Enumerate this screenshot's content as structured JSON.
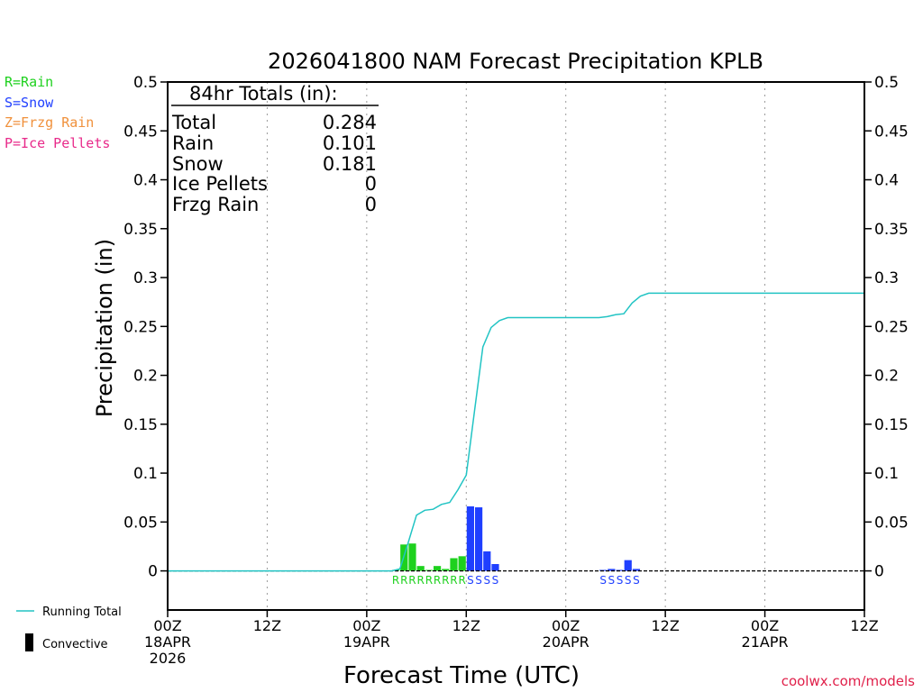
{
  "colors": {
    "rain": "#1ed11e",
    "snow": "#1f3fff",
    "frzg_rain": "#f0913c",
    "ice_pellets": "#e82a8a",
    "running_total": "#22c4c4",
    "convective": "#000000",
    "credit": "#e0204a"
  },
  "legend_left": {
    "rain": "R=Rain",
    "snow": "S=Snow",
    "frzg_rain": "Z=Frzg Rain",
    "ice_pellets": "P=Ice Pellets"
  },
  "legend_bottom": {
    "running_total": "Running Total",
    "convective": "Convective"
  },
  "totals_box": {
    "header": "84hr Totals (in):",
    "rows": [
      {
        "label": "Total",
        "value": "0.284"
      },
      {
        "label": "Rain",
        "value": "0.101"
      },
      {
        "label": "Snow",
        "value": "0.181"
      },
      {
        "label": "Ice Pellets",
        "value": "0"
      },
      {
        "label": "Frzg Rain",
        "value": "0"
      }
    ]
  },
  "credit": "coolwx.com/models",
  "chart_data": {
    "type": "bar",
    "title": "2026041800 NAM Forecast Precipitation KPLB",
    "xlabel": "Forecast Time (UTC)",
    "ylabel": "Precipitation (in)",
    "xlim": [
      0,
      84
    ],
    "ylim": [
      -0.04,
      0.5
    ],
    "yticks": [
      0,
      0.05,
      0.1,
      0.15,
      0.2,
      0.25,
      0.3,
      0.35,
      0.4,
      0.45,
      0.5
    ],
    "ytick_labels": [
      "0",
      "0.05",
      "0.1",
      "0.15",
      "0.2",
      "0.25",
      "0.3",
      "0.35",
      "0.4",
      "0.45",
      "0.5"
    ],
    "xticks": [
      {
        "hour": 0,
        "lines": [
          "00Z",
          "18APR",
          "2026"
        ]
      },
      {
        "hour": 12,
        "lines": [
          "12Z"
        ]
      },
      {
        "hour": 24,
        "lines": [
          "00Z",
          "19APR"
        ]
      },
      {
        "hour": 36,
        "lines": [
          "12Z"
        ]
      },
      {
        "hour": 48,
        "lines": [
          "00Z",
          "20APR"
        ]
      },
      {
        "hour": 60,
        "lines": [
          "12Z"
        ]
      },
      {
        "hour": 72,
        "lines": [
          "00Z",
          "21APR"
        ]
      },
      {
        "hour": 84,
        "lines": [
          "12Z"
        ]
      }
    ],
    "bars": [
      {
        "hour": 28,
        "value": 0.001,
        "type": "rain"
      },
      {
        "hour": 29,
        "value": 0.027,
        "type": "rain"
      },
      {
        "hour": 30,
        "value": 0.028,
        "type": "rain"
      },
      {
        "hour": 31,
        "value": 0.005,
        "type": "rain"
      },
      {
        "hour": 32,
        "value": 0.001,
        "type": "rain"
      },
      {
        "hour": 33,
        "value": 0.005,
        "type": "rain"
      },
      {
        "hour": 34,
        "value": 0.002,
        "type": "rain"
      },
      {
        "hour": 35,
        "value": 0.013,
        "type": "rain"
      },
      {
        "hour": 36,
        "value": 0.015,
        "type": "rain"
      },
      {
        "hour": 37,
        "value": 0.066,
        "type": "snow"
      },
      {
        "hour": 38,
        "value": 0.065,
        "type": "snow"
      },
      {
        "hour": 39,
        "value": 0.02,
        "type": "snow"
      },
      {
        "hour": 40,
        "value": 0.007,
        "type": "snow"
      },
      {
        "hour": 53,
        "value": 0.001,
        "type": "snow"
      },
      {
        "hour": 54,
        "value": 0.002,
        "type": "snow"
      },
      {
        "hour": 55,
        "value": 0.001,
        "type": "snow"
      },
      {
        "hour": 56,
        "value": 0.011,
        "type": "snow"
      },
      {
        "hour": 57,
        "value": 0.002,
        "type": "snow"
      }
    ],
    "running_total": {
      "x": [
        0,
        27,
        28,
        29,
        30,
        31,
        32,
        33,
        34,
        35,
        36,
        37,
        38,
        39,
        40,
        41,
        52,
        53,
        54,
        55,
        56,
        57,
        58,
        84
      ],
      "y": [
        0,
        0,
        0.002,
        0.029,
        0.057,
        0.062,
        0.063,
        0.068,
        0.07,
        0.083,
        0.098,
        0.164,
        0.229,
        0.249,
        0.256,
        0.259,
        0.259,
        0.26,
        0.262,
        0.263,
        0.274,
        0.281,
        0.284,
        0.284
      ]
    },
    "ptype_labels": [
      {
        "hour": 28,
        "text": "R",
        "type": "rain"
      },
      {
        "hour": 29,
        "text": "R",
        "type": "rain"
      },
      {
        "hour": 30,
        "text": "R",
        "type": "rain"
      },
      {
        "hour": 31,
        "text": "R",
        "type": "rain"
      },
      {
        "hour": 32,
        "text": "R",
        "type": "rain"
      },
      {
        "hour": 33,
        "text": "R",
        "type": "rain"
      },
      {
        "hour": 34,
        "text": "R",
        "type": "rain"
      },
      {
        "hour": 35,
        "text": "R",
        "type": "rain"
      },
      {
        "hour": 36,
        "text": "R",
        "type": "rain"
      },
      {
        "hour": 37,
        "text": "S",
        "type": "snow"
      },
      {
        "hour": 38,
        "text": "S",
        "type": "snow"
      },
      {
        "hour": 39,
        "text": "S",
        "type": "snow"
      },
      {
        "hour": 40,
        "text": "S",
        "type": "snow"
      },
      {
        "hour": 53,
        "text": "S",
        "type": "snow"
      },
      {
        "hour": 54,
        "text": "S",
        "type": "snow"
      },
      {
        "hour": 55,
        "text": "S",
        "type": "snow"
      },
      {
        "hour": 56,
        "text": "S",
        "type": "snow"
      },
      {
        "hour": 57,
        "text": "S",
        "type": "snow"
      }
    ]
  }
}
